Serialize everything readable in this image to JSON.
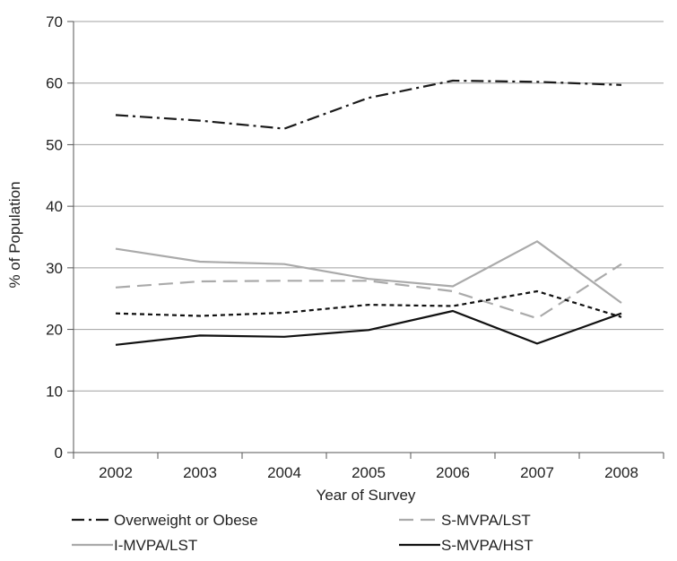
{
  "chart_data": {
    "type": "line",
    "title": "",
    "xlabel": "Year of Survey",
    "ylabel": "% of Population",
    "categories": [
      "2002",
      "2003",
      "2004",
      "2005",
      "2006",
      "2007",
      "2008"
    ],
    "ylim": [
      0,
      70
    ],
    "yticks": [
      "0",
      "10",
      "20",
      "30",
      "40",
      "50",
      "60",
      "70"
    ],
    "grid": true,
    "legend_position": "bottom",
    "series": [
      {
        "name": "Overweight or Obese",
        "values": [
          54.8,
          53.9,
          52.6,
          57.6,
          60.4,
          60.2,
          59.7
        ],
        "color": "#1a1a1a",
        "style": "dash-dot"
      },
      {
        "name": "S-MVPA/LST",
        "values": [
          26.8,
          27.8,
          27.9,
          27.9,
          26.2,
          21.8,
          30.6
        ],
        "color": "#aaaaaa",
        "style": "long-dash"
      },
      {
        "name": "I-MVPA/LST",
        "values": [
          33.1,
          31.0,
          30.6,
          28.2,
          27.0,
          34.3,
          24.3
        ],
        "color": "#aaaaaa",
        "style": "solid"
      },
      {
        "name": "S-MVPA/HST",
        "values": [
          17.5,
          19.0,
          18.8,
          19.9,
          23.0,
          17.7,
          22.6
        ],
        "color": "#111111",
        "style": "solid"
      },
      {
        "name": "",
        "values": [
          22.6,
          22.2,
          22.7,
          24.0,
          23.8,
          26.2,
          22.0
        ],
        "color": "#111111",
        "style": "short-dash"
      }
    ]
  }
}
